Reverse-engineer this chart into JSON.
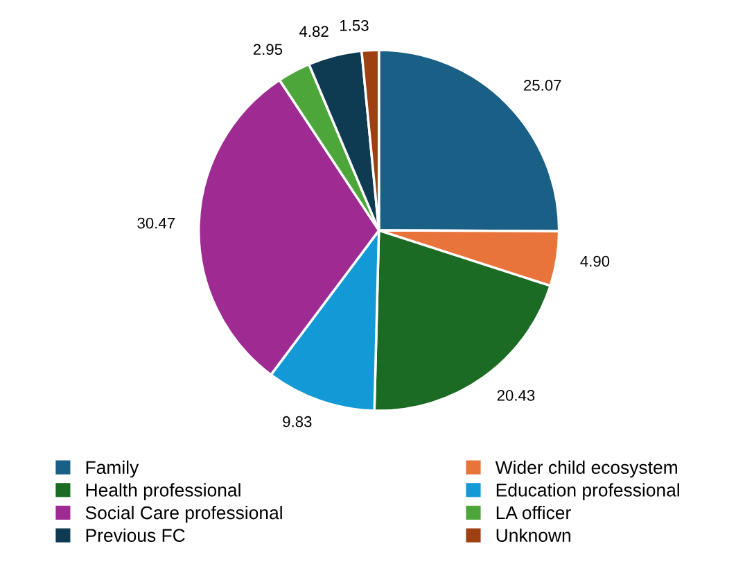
{
  "chart_data": {
    "type": "pie",
    "categories": [
      "Family",
      "Wider child ecosystem",
      "Health professional",
      "Education professional",
      "Social Care professional",
      "LA officer",
      "Previous FC",
      "Unknown"
    ],
    "values": [
      25.07,
      4.9,
      20.43,
      9.83,
      30.47,
      2.95,
      4.82,
      1.53
    ],
    "value_labels": [
      "25.07",
      "4.90",
      "20.43",
      "9.83",
      "30.47",
      "2.95",
      "4.82",
      "1.53"
    ],
    "colors": [
      "#1a5f85",
      "#e8743b",
      "#1c6b24",
      "#1399d5",
      "#9e2b91",
      "#4ca63a",
      "#0e3a52",
      "#9e4012"
    ],
    "legend": "bottom"
  }
}
